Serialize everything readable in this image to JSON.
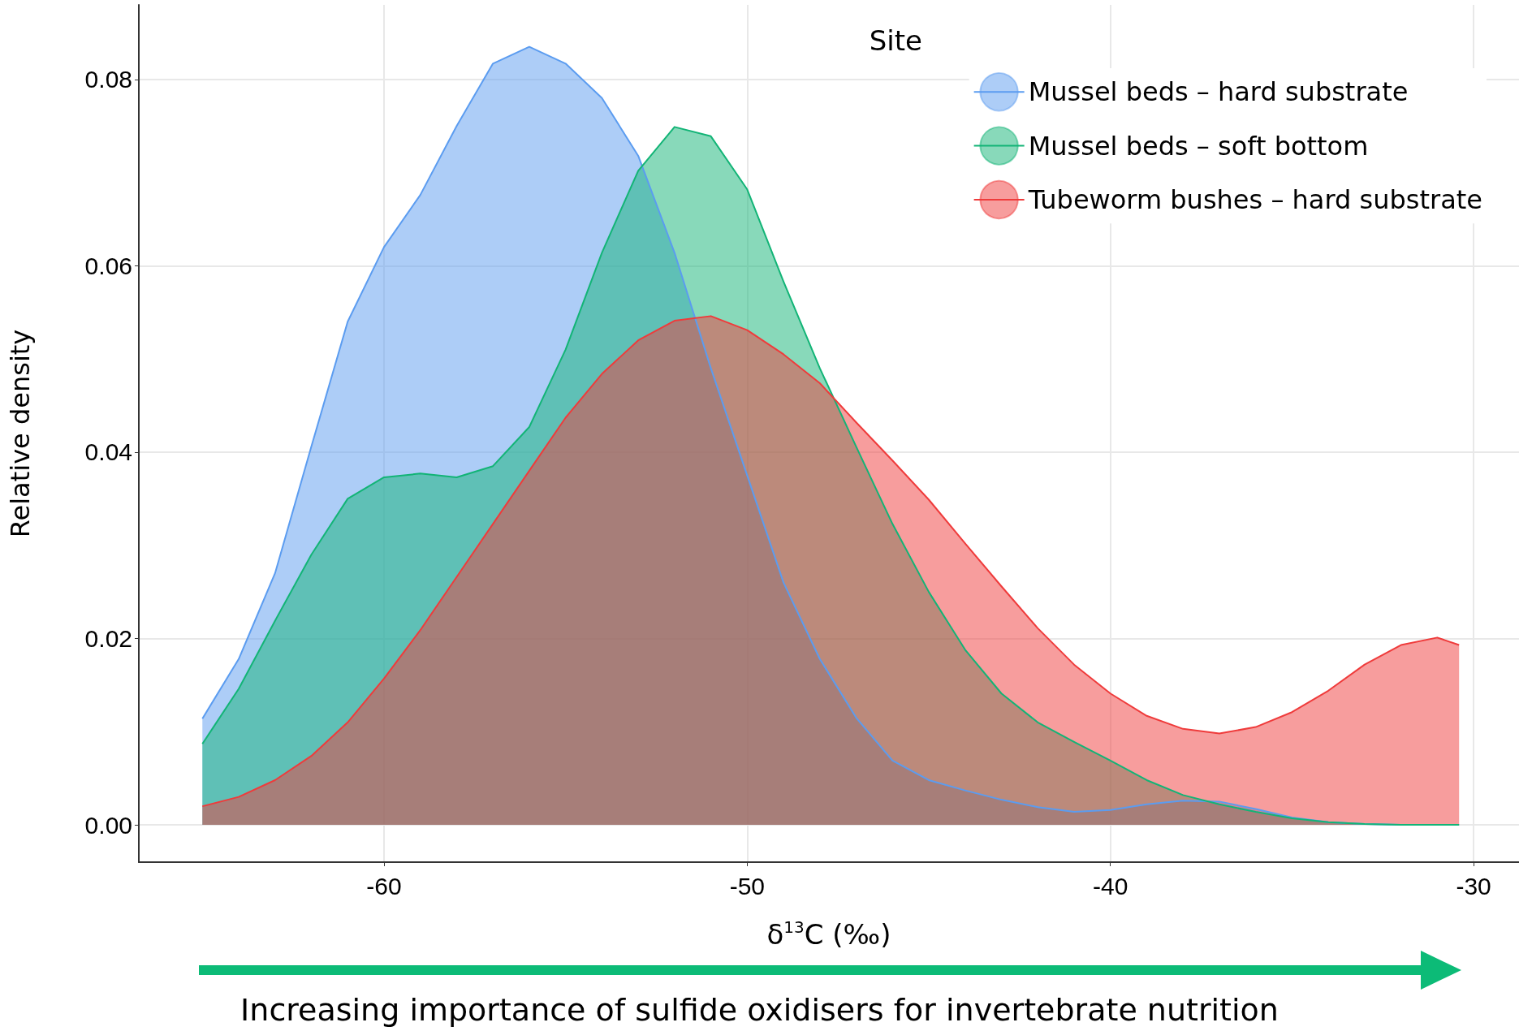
{
  "chart_data": {
    "type": "area",
    "xlabel": "δ$^{13}$C (‰)",
    "ylabel": "Relative density",
    "legend_title": "Site",
    "annotations": [
      "Increasing importance of sulfide oxidisers for invertebrate nutrition"
    ],
    "x": [
      -65,
      -64,
      -63,
      -62,
      -61,
      -60,
      -59,
      -58,
      -57,
      -56,
      -55,
      -54,
      -53,
      -52,
      -51,
      -50,
      -49,
      -48,
      -47,
      -46,
      -45,
      -44,
      -43,
      -42,
      -41,
      -40,
      -39,
      -38,
      -37,
      -36,
      -35,
      -34,
      -33,
      -32,
      -31,
      -30.4
    ],
    "series": [
      {
        "name": "Mussel beds – hard substrate",
        "color": "#5b9cf0",
        "values": [
          0.0114,
          0.0178,
          0.027,
          0.0406,
          0.054,
          0.062,
          0.0676,
          0.075,
          0.0817,
          0.0835,
          0.0817,
          0.078,
          0.0718,
          0.0614,
          0.049,
          0.0375,
          0.026,
          0.0178,
          0.0115,
          0.0069,
          0.0048,
          0.0037,
          0.0027,
          0.0019,
          0.0014,
          0.0016,
          0.0022,
          0.0026,
          0.0025,
          0.0017,
          0.0008,
          0.0003,
          0.0001,
          0,
          0,
          0
        ]
      },
      {
        "name": "Mussel beds – soft bottom",
        "color": "#12b476",
        "values": [
          0.0087,
          0.0146,
          0.0219,
          0.029,
          0.035,
          0.0373,
          0.0377,
          0.0373,
          0.0385,
          0.0427,
          0.051,
          0.0614,
          0.0702,
          0.0749,
          0.0739,
          0.0682,
          0.0583,
          0.049,
          0.0406,
          0.0323,
          0.025,
          0.0188,
          0.0141,
          0.011,
          0.0089,
          0.0069,
          0.0048,
          0.0032,
          0.0022,
          0.0014,
          0.0007,
          0.0003,
          0.0001,
          0,
          0,
          0
        ]
      },
      {
        "name": "Tubeworm bushes – hard substrate",
        "color": "#ef3b3b",
        "values": [
          0.002,
          0.003,
          0.0048,
          0.0074,
          0.011,
          0.0157,
          0.0209,
          0.0266,
          0.0323,
          0.038,
          0.0437,
          0.0484,
          0.052,
          0.0541,
          0.0546,
          0.0531,
          0.0505,
          0.0474,
          0.0432,
          0.0391,
          0.0349,
          0.0302,
          0.0256,
          0.0211,
          0.0172,
          0.0141,
          0.0117,
          0.0103,
          0.0098,
          0.0105,
          0.0121,
          0.0144,
          0.0172,
          0.0193,
          0.0201,
          0.0193
        ]
      }
    ],
    "xlim": [
      -66.75,
      -28.75
    ],
    "xticks": [
      -60,
      -50,
      -40,
      -30
    ],
    "ylim": [
      -0.004,
      0.088
    ],
    "yticks": [
      {
        "value": 0,
        "label": "0.00"
      },
      0.02,
      0.04,
      0.06,
      0.08
    ],
    "grid": true,
    "legend": "top right"
  }
}
